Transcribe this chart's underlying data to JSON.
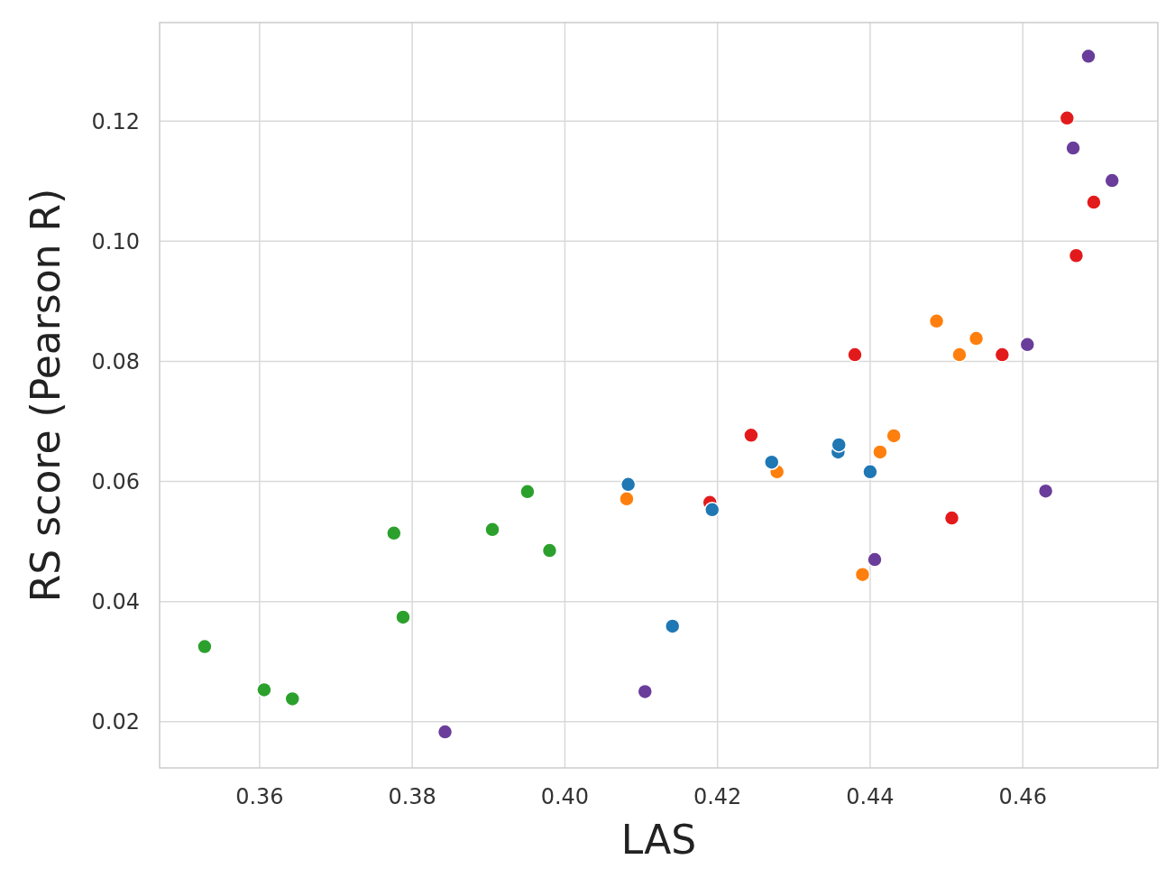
{
  "chart_data": {
    "type": "scatter",
    "xlabel": "LAS",
    "ylabel": "RS score (Pearson R)",
    "xlim": [
      0.3469,
      0.4777
    ],
    "ylim": [
      0.0123,
      0.1364
    ],
    "xticks": [
      {
        "value": 0.36,
        "label": "0.36"
      },
      {
        "value": 0.38,
        "label": "0.38"
      },
      {
        "value": 0.4,
        "label": "0.40"
      },
      {
        "value": 0.42,
        "label": "0.42"
      },
      {
        "value": 0.44,
        "label": "0.44"
      },
      {
        "value": 0.46,
        "label": "0.46"
      }
    ],
    "yticks": [
      {
        "value": 0.02,
        "label": "0.02"
      },
      {
        "value": 0.04,
        "label": "0.04"
      },
      {
        "value": 0.06,
        "label": "0.06"
      },
      {
        "value": 0.08,
        "label": "0.08"
      },
      {
        "value": 0.1,
        "label": "0.10"
      },
      {
        "value": 0.12,
        "label": "0.12"
      }
    ],
    "grid": true,
    "marker": "circle",
    "series": [
      {
        "color": "#2ca02c",
        "x": [
          0.3528,
          0.3606,
          0.3643,
          0.3776,
          0.3788,
          0.3905,
          0.3951,
          0.398
        ],
        "values": [
          0.0325,
          0.0253,
          0.0238,
          0.0514,
          0.0374,
          0.052,
          0.0583,
          0.0485
        ]
      },
      {
        "color": "#6a3d9a",
        "x": [
          0.3843,
          0.4105,
          0.4406,
          0.4606,
          0.463,
          0.4666,
          0.4686,
          0.4717
        ],
        "values": [
          0.0183,
          0.025,
          0.047,
          0.0828,
          0.0584,
          0.1155,
          0.1308,
          0.1101
        ]
      },
      {
        "color": "#e31a1c",
        "x": [
          0.419,
          0.4244,
          0.438,
          0.4507,
          0.4573,
          0.4658,
          0.467,
          0.4693
        ],
        "values": [
          0.0565,
          0.0677,
          0.0811,
          0.0539,
          0.0811,
          0.1205,
          0.0976,
          0.1065
        ]
      },
      {
        "color": "#ff7f0e",
        "x": [
          0.4081,
          0.4278,
          0.439,
          0.4413,
          0.4431,
          0.4487,
          0.4517,
          0.4539
        ],
        "values": [
          0.0571,
          0.0616,
          0.0445,
          0.0649,
          0.0676,
          0.0867,
          0.0811,
          0.0838
        ]
      },
      {
        "color": "#1f77b4",
        "x": [
          0.4083,
          0.4141,
          0.4193,
          0.4271,
          0.4358,
          0.4359,
          0.44
        ],
        "values": [
          0.0595,
          0.0359,
          0.0553,
          0.0632,
          0.0649,
          0.0661,
          0.0616
        ]
      }
    ]
  }
}
